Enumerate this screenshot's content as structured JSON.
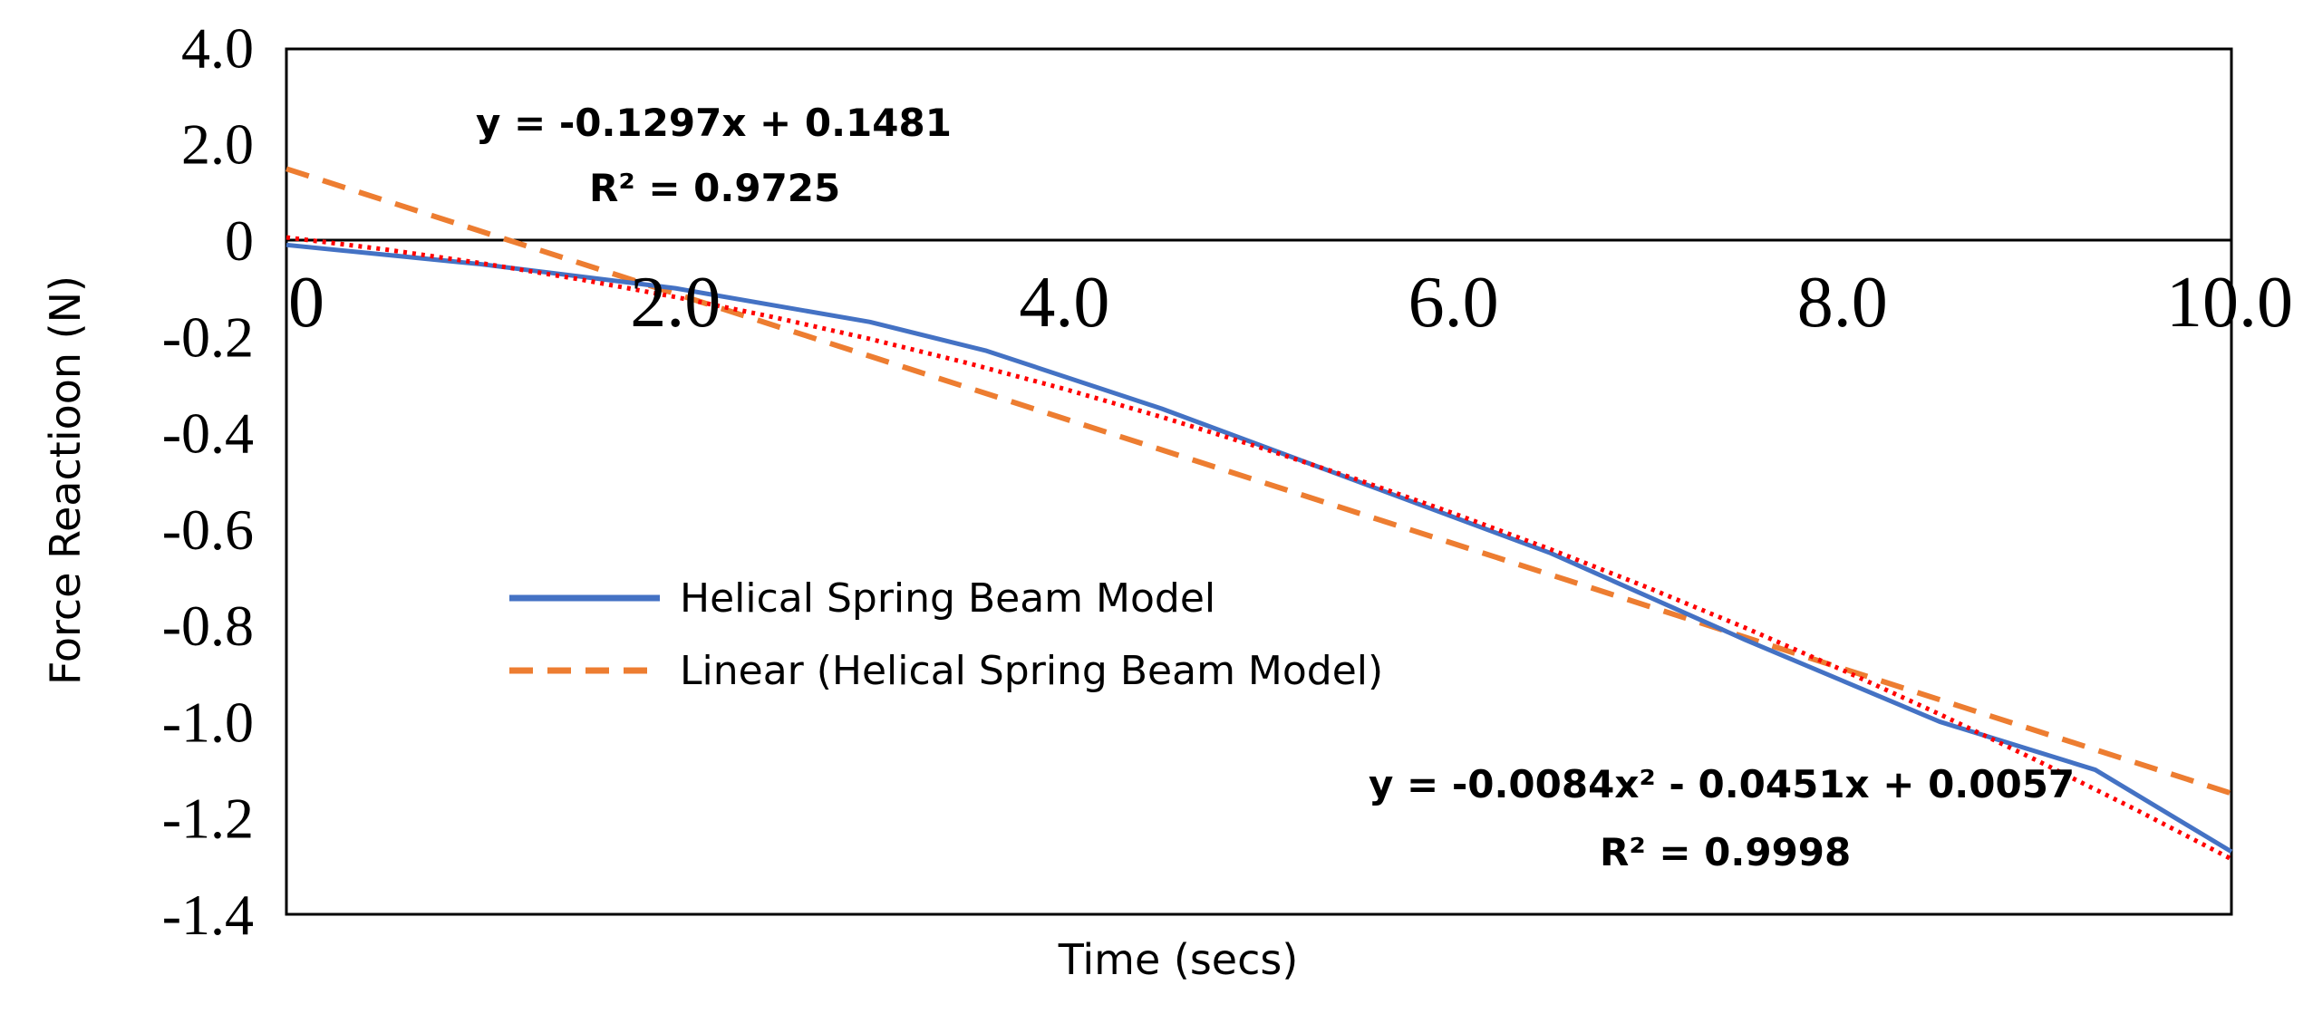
{
  "chart_data": {
    "type": "line",
    "title": "",
    "xlabel": "Time (secs)",
    "ylabel": "Force Reactioon (N)",
    "xlim": [
      0,
      10
    ],
    "ylim": [
      -1.4,
      0
    ],
    "x_ticks": [
      {
        "value": 0,
        "label": "0"
      },
      {
        "value": 2,
        "label": "2.0"
      },
      {
        "value": 4,
        "label": "4.0"
      },
      {
        "value": 6,
        "label": "6.0"
      },
      {
        "value": 8,
        "label": "8.0"
      },
      {
        "value": 10,
        "label": "10.0"
      }
    ],
    "y_ticks": [
      {
        "value": 0,
        "label": "0"
      },
      {
        "value": -0.2,
        "label": "-0.2"
      },
      {
        "value": -0.4,
        "label": "-0.4"
      },
      {
        "value": -0.6,
        "label": "-0.6"
      },
      {
        "value": -0.8,
        "label": "-0.8"
      },
      {
        "value": -1.0,
        "label": "-1.0"
      },
      {
        "value": -1.2,
        "label": "-1.2"
      },
      {
        "value": -1.4,
        "label": "-1.4"
      }
    ],
    "y_upper_labels": [
      {
        "value": 0.2,
        "label": "2.0"
      },
      {
        "value": 0.4,
        "label": "4.0"
      }
    ],
    "grid": false,
    "legend_position": "center-left",
    "series": [
      {
        "name": "Helical Spring Beam Model",
        "style": "solid",
        "color": "#4472C4",
        "x": [
          0,
          1.0,
          2.0,
          3.0,
          3.6,
          4.5,
          5.5,
          6.5,
          7.5,
          8.5,
          9.3,
          10.0
        ],
        "y": [
          -0.01,
          -0.05,
          -0.1,
          -0.17,
          -0.23,
          -0.35,
          -0.5,
          -0.65,
          -0.83,
          -1.0,
          -1.1,
          -1.27
        ]
      },
      {
        "name": "Linear (Helical Spring Beam Model)",
        "style": "dashed",
        "color": "#ED7D31",
        "trendline": "linear",
        "equation": "y = -0.1297x + 0.1481",
        "r2": "R² = 0.9725",
        "x": [
          0,
          10
        ],
        "y": [
          0.1481,
          -1.1489
        ]
      },
      {
        "name": "",
        "style": "dotted",
        "color": "#FF0000",
        "trendline": "polynomial",
        "equation": "y = -0.0084x² - 0.0451x + 0.0057",
        "r2": "R² = 0.9998",
        "x": [
          0,
          0.5,
          1,
          1.5,
          2,
          2.5,
          3,
          3.5,
          4,
          4.5,
          5,
          5.5,
          6,
          6.5,
          7,
          7.5,
          8,
          8.5,
          9,
          9.5,
          10
        ],
        "y": [
          0.0057,
          -0.0189,
          -0.0478,
          -0.0808,
          -0.1181,
          -0.1596,
          -0.2052,
          -0.2551,
          -0.3091,
          -0.3673,
          -0.4298,
          -0.4964,
          -0.5673,
          -0.6423,
          -0.7216,
          -0.805,
          -0.8927,
          -0.9845,
          -1.0806,
          -1.1808,
          -1.2853
        ]
      }
    ],
    "annotations": [
      {
        "text": "y = -0.1297x + 0.1481",
        "anchor": "top-left"
      },
      {
        "text": "R² = 0.9725",
        "anchor": "top-left"
      },
      {
        "text": "y = -0.0084x² - 0.0451x + 0.0057",
        "anchor": "bottom-right"
      },
      {
        "text": "R² = 0.9998",
        "anchor": "bottom-right"
      }
    ]
  }
}
